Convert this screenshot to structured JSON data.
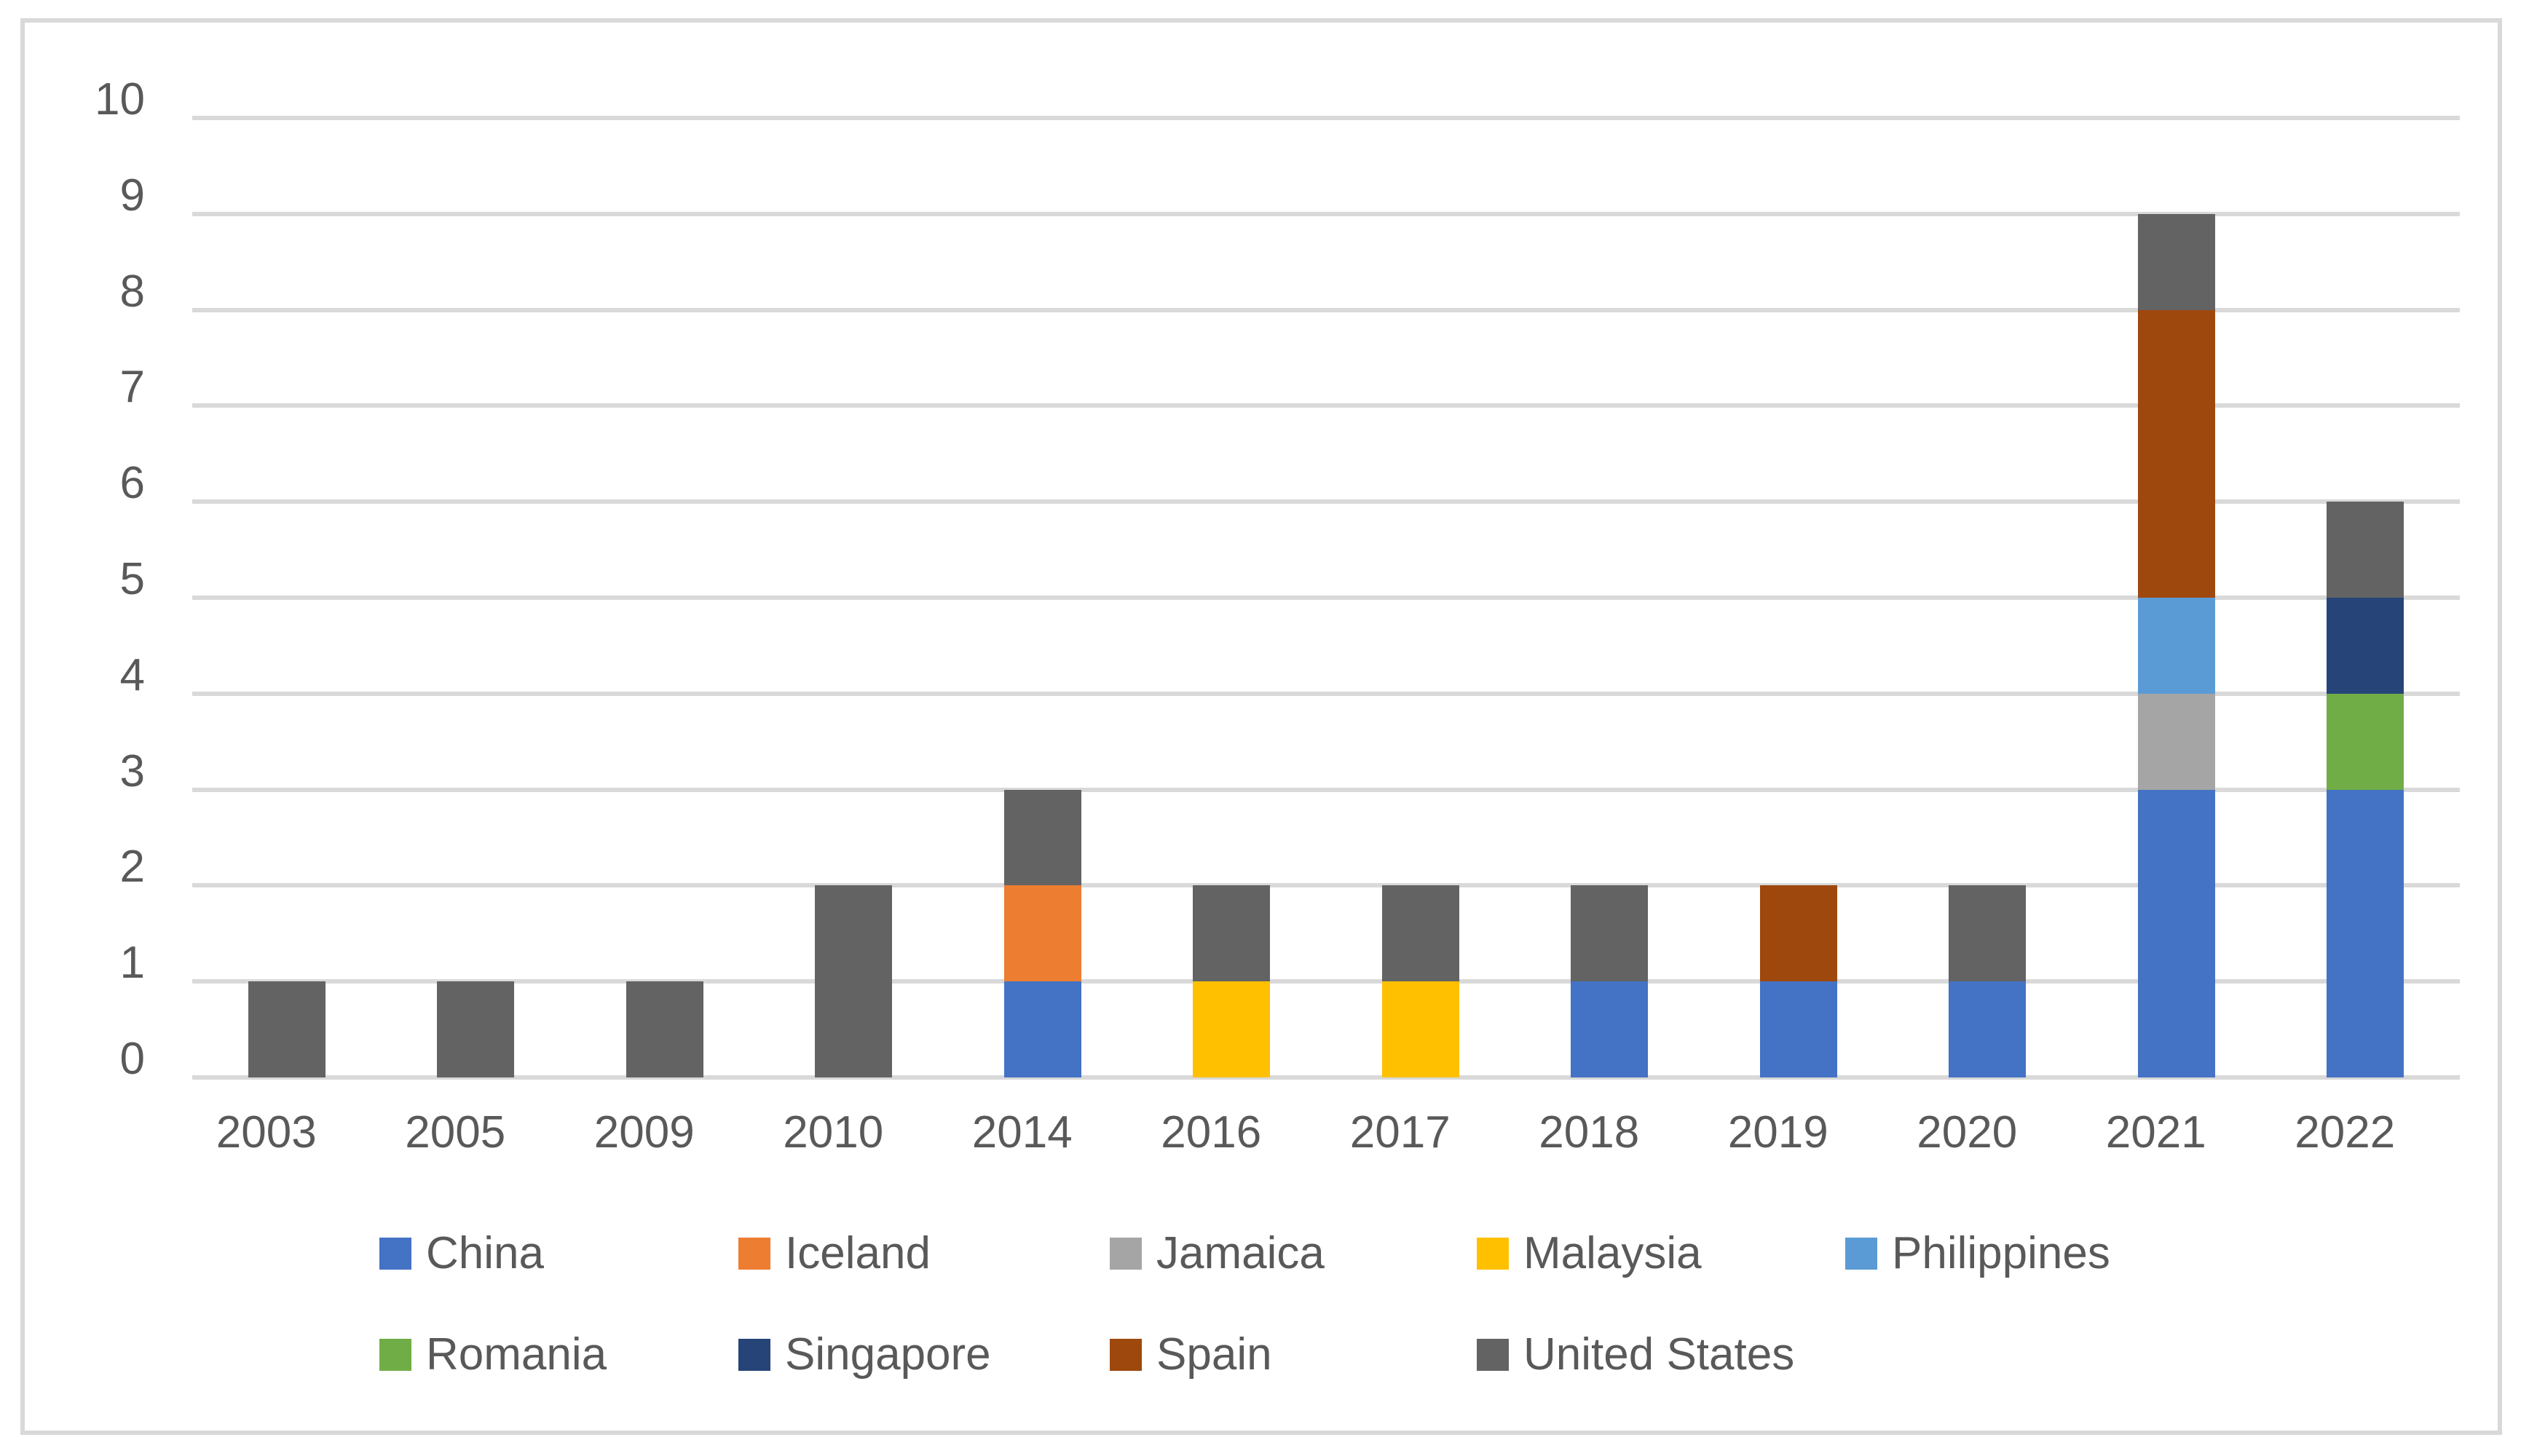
{
  "chart_data": {
    "type": "bar",
    "stacked": true,
    "title": "",
    "categories": [
      "2003",
      "2005",
      "2009",
      "2010",
      "2014",
      "2016",
      "2017",
      "2018",
      "2019",
      "2020",
      "2021",
      "2022"
    ],
    "series": [
      {
        "name": "China",
        "color": "#4472C4",
        "values": [
          0,
          0,
          0,
          0,
          1,
          0,
          0,
          1,
          1,
          1,
          3,
          3
        ]
      },
      {
        "name": "Iceland",
        "color": "#ED7D31",
        "values": [
          0,
          0,
          0,
          0,
          1,
          0,
          0,
          0,
          0,
          0,
          0,
          0
        ]
      },
      {
        "name": "Jamaica",
        "color": "#A5A5A5",
        "values": [
          0,
          0,
          0,
          0,
          0,
          0,
          0,
          0,
          0,
          0,
          1,
          0
        ]
      },
      {
        "name": "Malaysia",
        "color": "#FFC000",
        "values": [
          0,
          0,
          0,
          0,
          0,
          1,
          1,
          0,
          0,
          0,
          0,
          0
        ]
      },
      {
        "name": "Philippines",
        "color": "#5B9BD5",
        "values": [
          0,
          0,
          0,
          0,
          0,
          0,
          0,
          0,
          0,
          0,
          1,
          0
        ]
      },
      {
        "name": "Romania",
        "color": "#70AD47",
        "values": [
          0,
          0,
          0,
          0,
          0,
          0,
          0,
          0,
          0,
          0,
          0,
          1
        ]
      },
      {
        "name": "Singapore",
        "color": "#264478",
        "values": [
          0,
          0,
          0,
          0,
          0,
          0,
          0,
          0,
          0,
          0,
          0,
          1
        ]
      },
      {
        "name": "Spain",
        "color": "#9E480E",
        "values": [
          0,
          0,
          0,
          0,
          0,
          0,
          0,
          0,
          1,
          0,
          3,
          0
        ]
      },
      {
        "name": "United States",
        "color": "#636363",
        "values": [
          1,
          1,
          1,
          2,
          1,
          1,
          1,
          1,
          0,
          1,
          1,
          1
        ]
      }
    ],
    "totals_by_category": [
      1,
      1,
      1,
      2,
      3,
      2,
      2,
      2,
      2,
      2,
      9,
      6
    ],
    "xlabel": "",
    "ylabel": "",
    "y_axis": {
      "min": 0,
      "max": 10,
      "step": 1,
      "tick_labels": [
        "0",
        "1",
        "2",
        "3",
        "4",
        "5",
        "6",
        "7",
        "8",
        "9",
        "10"
      ]
    },
    "grid": true,
    "legend_position": "bottom",
    "legend_rows": [
      [
        "China",
        "Iceland",
        "Jamaica",
        "Malaysia",
        "Philippines"
      ],
      [
        "Romania",
        "Singapore",
        "Spain",
        "United States"
      ]
    ]
  },
  "colors": {
    "background": "#FFFFFF",
    "chart_border": "#D9D9D9",
    "gridline": "#D9D9D9",
    "axis_text": "#595959"
  }
}
